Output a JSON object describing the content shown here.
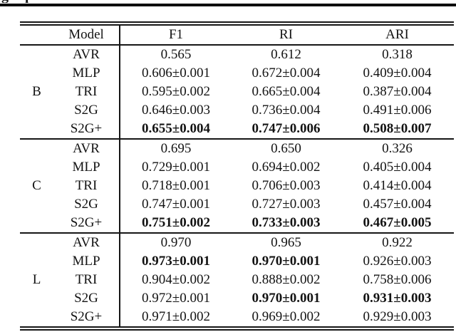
{
  "page": {
    "background": "#ffffff",
    "text_color": "#131313",
    "rule_color": "#161616",
    "caption_fragment": {
      "left_glyph": "g",
      "right_glyph": "p"
    }
  },
  "table": {
    "headers": {
      "group": "",
      "model": "Model",
      "metrics": [
        "F1",
        "RI",
        "ARI"
      ]
    },
    "groups": [
      {
        "label": "B",
        "rows": [
          {
            "model": "AVR",
            "values": [
              "0.565",
              "0.612",
              "0.318"
            ],
            "bold": [
              false,
              false,
              false
            ]
          },
          {
            "model": "MLP",
            "values": [
              "0.606±0.001",
              "0.672±0.004",
              "0.409±0.004"
            ],
            "bold": [
              false,
              false,
              false
            ]
          },
          {
            "model": "TRI",
            "values": [
              "0.595±0.002",
              "0.665±0.004",
              "0.387±0.004"
            ],
            "bold": [
              false,
              false,
              false
            ]
          },
          {
            "model": "S2G",
            "values": [
              "0.646±0.003",
              "0.736±0.004",
              "0.491±0.006"
            ],
            "bold": [
              false,
              false,
              false
            ]
          },
          {
            "model": "S2G+",
            "values": [
              "0.655±0.004",
              "0.747±0.006",
              "0.508±0.007"
            ],
            "bold": [
              true,
              true,
              true
            ]
          }
        ]
      },
      {
        "label": "C",
        "rows": [
          {
            "model": "AVR",
            "values": [
              "0.695",
              "0.650",
              "0.326"
            ],
            "bold": [
              false,
              false,
              false
            ]
          },
          {
            "model": "MLP",
            "values": [
              "0.729±0.001",
              "0.694±0.002",
              "0.405±0.004"
            ],
            "bold": [
              false,
              false,
              false
            ]
          },
          {
            "model": "TRI",
            "values": [
              "0.718±0.001",
              "0.706±0.003",
              "0.414±0.004"
            ],
            "bold": [
              false,
              false,
              false
            ]
          },
          {
            "model": "S2G",
            "values": [
              "0.747±0.001",
              "0.727±0.003",
              "0.457±0.004"
            ],
            "bold": [
              false,
              false,
              false
            ]
          },
          {
            "model": "S2G+",
            "values": [
              "0.751±0.002",
              "0.733±0.003",
              "0.467±0.005"
            ],
            "bold": [
              true,
              true,
              true
            ]
          }
        ]
      },
      {
        "label": "L",
        "rows": [
          {
            "model": "AVR",
            "values": [
              "0.970",
              "0.965",
              "0.922"
            ],
            "bold": [
              false,
              false,
              false
            ]
          },
          {
            "model": "MLP",
            "values": [
              "0.973±0.001",
              "0.970±0.001",
              "0.926±0.003"
            ],
            "bold": [
              true,
              true,
              false
            ]
          },
          {
            "model": "TRI",
            "values": [
              "0.904±0.002",
              "0.888±0.002",
              "0.758±0.006"
            ],
            "bold": [
              false,
              false,
              false
            ]
          },
          {
            "model": "S2G",
            "values": [
              "0.972±0.001",
              "0.970±0.001",
              "0.931±0.003"
            ],
            "bold": [
              false,
              true,
              true
            ]
          },
          {
            "model": "S2G+",
            "values": [
              "0.971±0.002",
              "0.969±0.002",
              "0.929±0.003"
            ],
            "bold": [
              false,
              false,
              false
            ]
          }
        ]
      }
    ]
  }
}
